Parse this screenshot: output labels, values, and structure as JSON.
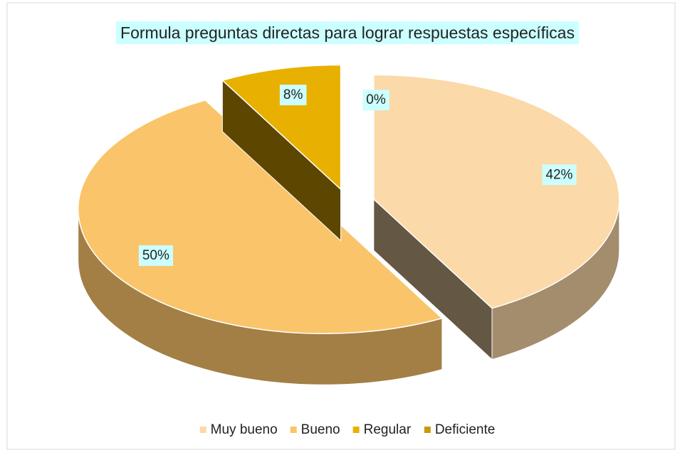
{
  "chart_data": {
    "type": "pie3d",
    "title": "Formula preguntas directas para lograr respuestas específicas",
    "categories": [
      "Muy bueno",
      "Bueno",
      "Regular",
      "Deficiente"
    ],
    "values": [
      42,
      50,
      8,
      0
    ],
    "value_labels": [
      "42%",
      "50%",
      "8%",
      "0%"
    ],
    "colors": [
      "#fbd9a8",
      "#fac46a",
      "#e8b000",
      "#c99a06"
    ],
    "legend": "bottom"
  }
}
